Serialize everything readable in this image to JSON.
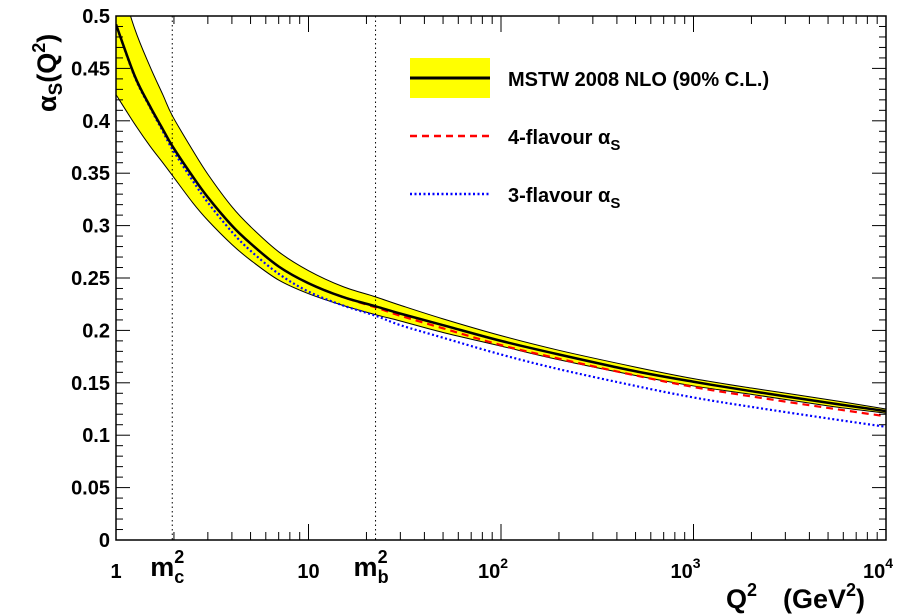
{
  "chart_data": {
    "type": "line",
    "xscale": "log",
    "xlim": [
      1,
      10000
    ],
    "ylim": [
      0,
      0.5
    ],
    "xlabel": {
      "main": "Q",
      "sup": "2",
      "unit_pre": "(GeV",
      "unit_sup": "2",
      "unit_post": ")"
    },
    "ylabel": {
      "greek": "α",
      "sub": "S",
      "pre": "(Q",
      "sup": "2",
      "post": ")"
    },
    "y_ticks": [
      "0",
      "0.05",
      "0.1",
      "0.15",
      "0.2",
      "0.25",
      "0.3",
      "0.35",
      "0.4",
      "0.45",
      "0.5"
    ],
    "x_tick_labels": [
      {
        "x": 1,
        "text": "1",
        "sup": ""
      },
      {
        "x": 10,
        "text": "10",
        "sup": ""
      },
      {
        "x": 100,
        "text": "10",
        "sup": "2"
      },
      {
        "x": 1000,
        "text": "10",
        "sup": "3"
      },
      {
        "x": 10000,
        "text": "10",
        "sup": "4"
      }
    ],
    "vertical_markers": [
      {
        "x": 1.96,
        "label": "m",
        "sup": "2",
        "sub": "c"
      },
      {
        "x": 22.3,
        "label": "m",
        "sup": "2",
        "sub": "b"
      }
    ],
    "band": {
      "name": "MSTW 2008 NLO (90% C.L.)",
      "color": "#ffff00",
      "x": [
        1,
        1.25,
        1.5,
        1.75,
        1.96,
        2.5,
        3,
        4,
        5,
        7,
        10,
        15,
        22.3,
        30,
        50,
        100,
        200,
        500,
        1000,
        2000,
        5000,
        10000
      ],
      "upper": [
        0.545,
        0.488,
        0.452,
        0.425,
        0.405,
        0.372,
        0.349,
        0.318,
        0.299,
        0.275,
        0.257,
        0.242,
        0.232,
        0.224,
        0.211,
        0.195,
        0.181,
        0.165,
        0.154,
        0.145,
        0.134,
        0.125
      ],
      "lower": [
        0.425,
        0.397,
        0.376,
        0.36,
        0.348,
        0.322,
        0.305,
        0.282,
        0.267,
        0.248,
        0.235,
        0.224,
        0.215,
        0.209,
        0.198,
        0.185,
        0.172,
        0.157,
        0.147,
        0.139,
        0.128,
        0.121
      ]
    },
    "series": [
      {
        "name": "MSTW 2008 NLO (90% C.L.)",
        "color": "#000000",
        "style": "solid",
        "x": [
          1,
          1.25,
          1.5,
          1.75,
          1.96,
          2.5,
          3,
          4,
          5,
          7,
          10,
          15,
          22.3,
          30,
          50,
          100,
          200,
          500,
          1000,
          2000,
          5000,
          10000
        ],
        "y": [
          0.492,
          0.443,
          0.414,
          0.392,
          0.376,
          0.347,
          0.327,
          0.3,
          0.283,
          0.261,
          0.245,
          0.232,
          0.223,
          0.216,
          0.205,
          0.19,
          0.177,
          0.161,
          0.151,
          0.142,
          0.131,
          0.123
        ]
      },
      {
        "name": "4-flavour α",
        "sub": "S",
        "color": "#ff0000",
        "style": "dashed",
        "x": [
          1,
          1.25,
          1.5,
          1.75,
          1.96,
          2.5,
          3,
          4,
          5,
          7,
          10,
          15,
          22.3,
          30,
          50,
          100,
          200,
          500,
          1000,
          2000,
          5000,
          10000
        ],
        "y": [
          0.492,
          0.443,
          0.414,
          0.392,
          0.376,
          0.347,
          0.327,
          0.3,
          0.283,
          0.261,
          0.245,
          0.232,
          0.222,
          0.214,
          0.202,
          0.186,
          0.173,
          0.157,
          0.146,
          0.137,
          0.126,
          0.118
        ]
      },
      {
        "name": "3-flavour α",
        "sub": "S",
        "color": "#0000ff",
        "style": "dotted",
        "x": [
          1,
          1.25,
          1.5,
          1.75,
          1.96,
          2.5,
          3,
          4,
          5,
          7,
          10,
          15,
          22.3,
          30,
          50,
          100,
          200,
          500,
          1000,
          2000,
          5000,
          10000
        ],
        "y": [
          0.492,
          0.442,
          0.413,
          0.39,
          0.373,
          0.343,
          0.322,
          0.294,
          0.276,
          0.254,
          0.237,
          0.224,
          0.214,
          0.205,
          0.193,
          0.177,
          0.163,
          0.147,
          0.136,
          0.127,
          0.116,
          0.108
        ]
      }
    ],
    "legend": {
      "position": "top-right",
      "entries": [
        {
          "label": "MSTW 2008 NLO (90% C.L.)",
          "sub": ""
        },
        {
          "label": "4-flavour α",
          "sub": "S"
        },
        {
          "label": "3-flavour α",
          "sub": "S"
        }
      ]
    }
  }
}
